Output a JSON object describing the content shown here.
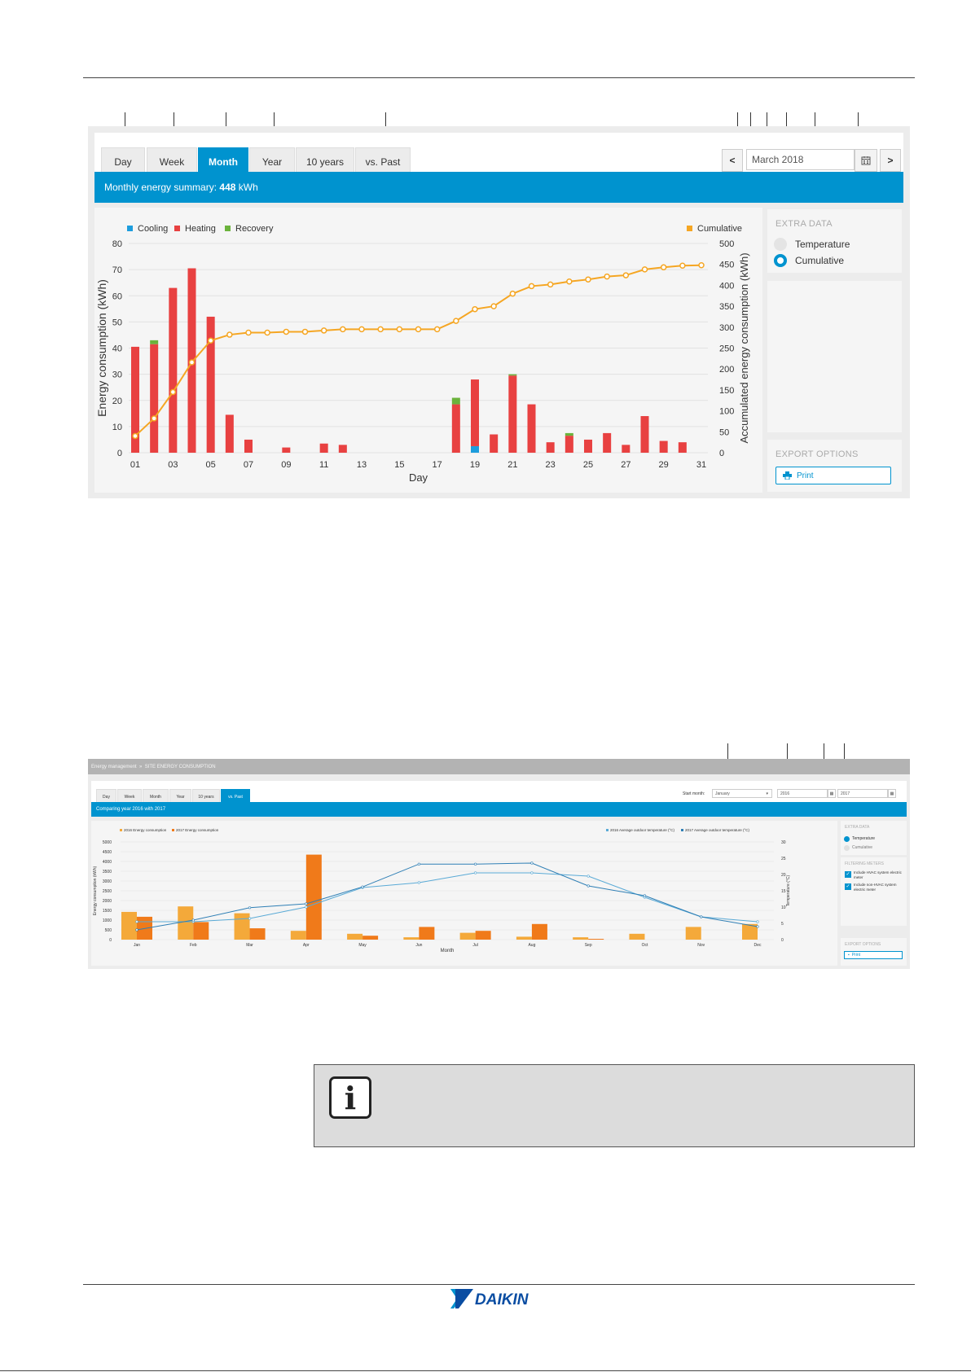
{
  "panel1": {
    "tabs": [
      "Day",
      "Week",
      "Month",
      "Year",
      "10 years",
      "vs. Past"
    ],
    "active_tab": "Month",
    "nav_prev": "<",
    "nav_next": ">",
    "month_value": "March 2018",
    "calendar_icon": "calendar-icon",
    "summary_prefix": "Monthly energy summary: ",
    "summary_value": "448",
    "summary_unit": " kWh",
    "extra_data_title": "EXTRA DATA",
    "radio_temperature": "Temperature",
    "radio_cumulative": "Cumulative",
    "radio_selected": "Cumulative",
    "export_title": "EXPORT OPTIONS",
    "print_label": "Print",
    "colors": {
      "accent": "#0093cf",
      "cooling": "#1d9ddd",
      "heating": "#e84141",
      "recovery": "#6bb33c",
      "cumulative": "#f5a623"
    }
  },
  "panel2": {
    "breadcrumb": "Energy management  »  SITE ENERGY CONSUMPTION",
    "tabs": [
      "Day",
      "Week",
      "Month",
      "Year",
      "10 years",
      "vs. Past"
    ],
    "active_tab": "vs. Past",
    "start_month_label": "Start month:",
    "start_month_value": "January",
    "year1_value": "2016",
    "year2_value": "2017",
    "comparing_text": "Comparing year 2016 with 2017",
    "extra_data_title": "EXTRA DATA",
    "radio_temperature": "Temperature",
    "radio_cumulative": "Cumulative",
    "filters_title": "FILTERING METERS",
    "filter1": "Include HVAC system electric meter",
    "filter2": "Include non-HVAC system electric meter",
    "export_title": "EXPORT OPTIONS",
    "print_label": "Print",
    "colors": {
      "y2016": "#f4a93a",
      "y2017": "#f07a1a",
      "t2016": "#5aaad6",
      "t2017": "#2f7fb5"
    }
  },
  "chart_data": [
    {
      "type": "bar",
      "xlabel": "Day",
      "ylabel": "Energy consumption (kWh)",
      "y2label": "Accumulated energy consumption (kWh)",
      "ylim": [
        0,
        80
      ],
      "y2lim": [
        0,
        500
      ],
      "yticks": [
        0,
        10,
        20,
        30,
        40,
        50,
        60,
        70,
        80
      ],
      "y2ticks": [
        0,
        50,
        100,
        150,
        200,
        250,
        300,
        350,
        400,
        450,
        500
      ],
      "xticks": [
        "01",
        "03",
        "05",
        "07",
        "09",
        "11",
        "13",
        "15",
        "17",
        "19",
        "21",
        "23",
        "25",
        "27",
        "29",
        "31"
      ],
      "legend": [
        "Cooling",
        "Heating",
        "Recovery"
      ],
      "legend_right": "Cumulative",
      "grid": true,
      "days": [
        1,
        2,
        3,
        4,
        5,
        6,
        7,
        8,
        9,
        10,
        11,
        12,
        13,
        14,
        15,
        16,
        17,
        18,
        19,
        20,
        21,
        22,
        23,
        24,
        25,
        26,
        27,
        28,
        29,
        30,
        31
      ],
      "series": [
        {
          "name": "Cooling",
          "values": [
            0,
            0,
            0,
            0,
            0,
            0,
            0,
            0,
            0,
            0,
            0,
            0,
            0,
            0,
            0,
            0,
            0,
            0,
            2.5,
            0,
            0,
            0,
            0,
            0,
            0,
            0,
            0,
            0,
            0,
            0,
            0
          ]
        },
        {
          "name": "Heating",
          "values": [
            40.5,
            41.5,
            63,
            70.5,
            52,
            14.5,
            5,
            0,
            2,
            0,
            3.5,
            3,
            0,
            0,
            0,
            0,
            0,
            18.5,
            25.5,
            7,
            29.5,
            18.5,
            4,
            6.5,
            5,
            7.5,
            3,
            14,
            4.5,
            4,
            0
          ]
        },
        {
          "name": "Recovery",
          "values": [
            0,
            1.5,
            0,
            0,
            0,
            0,
            0,
            0,
            0,
            0,
            0,
            0,
            0,
            0,
            0,
            0,
            0,
            2.5,
            0,
            0,
            0.5,
            0,
            0,
            1,
            0,
            0,
            0,
            0,
            0,
            0,
            0
          ]
        },
        {
          "name": "Cumulative",
          "values": [
            40,
            82,
            145,
            216,
            268,
            282,
            287,
            287,
            289,
            289,
            292,
            295,
            295,
            295,
            295,
            295,
            295,
            315,
            343,
            350,
            380,
            398,
            402,
            409,
            414,
            421,
            424,
            438,
            443,
            447,
            448
          ]
        }
      ]
    },
    {
      "type": "bar",
      "title": "",
      "xlabel": "Month",
      "ylabel": "Energy consumption (kWh)",
      "y2label": "Temperature (°C)",
      "ylim": [
        0,
        5000
      ],
      "y2lim": [
        0,
        30
      ],
      "yticks": [
        0,
        500,
        1000,
        1500,
        2000,
        2500,
        3000,
        3500,
        4000,
        4500,
        5000
      ],
      "y2ticks": [
        0,
        5,
        10,
        15,
        20,
        25,
        30
      ],
      "categories": [
        "Jan",
        "Feb",
        "Mar",
        "Apr",
        "May",
        "Jun",
        "Jul",
        "Aug",
        "Sep",
        "Oct",
        "Nov",
        "Dec"
      ],
      "series": [
        {
          "name": "2016 Energy consumption",
          "values": [
            1420,
            1700,
            1350,
            450,
            300,
            120,
            350,
            150,
            120,
            300,
            650,
            800
          ]
        },
        {
          "name": "2017 Energy consumption",
          "values": [
            1170,
            900,
            580,
            4350,
            200,
            650,
            450,
            800,
            40,
            0,
            0,
            0
          ]
        },
        {
          "name": "2016 Average outdoor temperature (°C)",
          "values": [
            5.5,
            5.5,
            6.5,
            10,
            16,
            17.5,
            20.5,
            20.5,
            19.5,
            13,
            7,
            5.5
          ]
        },
        {
          "name": "2017 Average outdoor temperature (°C)",
          "values": [
            3,
            6,
            9.8,
            11,
            16.2,
            23.2,
            23.2,
            23.5,
            16.5,
            13.5,
            7,
            4
          ]
        }
      ]
    }
  ]
}
